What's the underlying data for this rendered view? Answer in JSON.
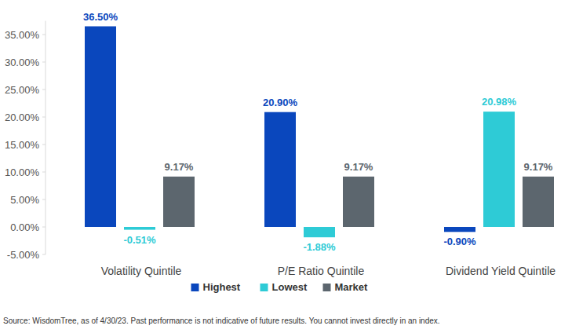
{
  "chart_data": {
    "type": "bar",
    "categories": [
      "Volatility Quintile",
      "P/E Ratio Quintile",
      "Dividend Yield Quintile"
    ],
    "series": [
      {
        "name": "Highest",
        "color": "#0a47bd",
        "values": [
          36.5,
          20.9,
          -0.9
        ],
        "value_labels": [
          "36.50%",
          "20.90%",
          "-0.90%"
        ]
      },
      {
        "name": "Lowest",
        "color": "#2ecbd6",
        "values": [
          -0.51,
          -1.88,
          20.98
        ],
        "value_labels": [
          "-0.51%",
          "-1.88%",
          "20.98%"
        ]
      },
      {
        "name": "Market",
        "color": "#5c666e",
        "values": [
          9.17,
          9.17,
          9.17
        ],
        "value_labels": [
          "9.17%",
          "9.17%",
          "9.17%"
        ]
      }
    ],
    "ylim": [
      -5,
      37.5
    ],
    "yticks": [
      {
        "value": -5,
        "label": "-5.00%"
      },
      {
        "value": 0,
        "label": "0.00%"
      },
      {
        "value": 5,
        "label": "5.00%"
      },
      {
        "value": 10,
        "label": "10.00%"
      },
      {
        "value": 15,
        "label": "15.00%"
      },
      {
        "value": 20,
        "label": "20.00%"
      },
      {
        "value": 25,
        "label": "25.00%"
      },
      {
        "value": 30,
        "label": "30.00%"
      },
      {
        "value": 35,
        "label": "35.00%"
      }
    ],
    "grid": false,
    "legend": "bottom",
    "data_labels": true,
    "source": "Source: WisdomTree, as of 4/30/23. Past performance is not indicative of future results. You cannot invest directly in an index."
  }
}
